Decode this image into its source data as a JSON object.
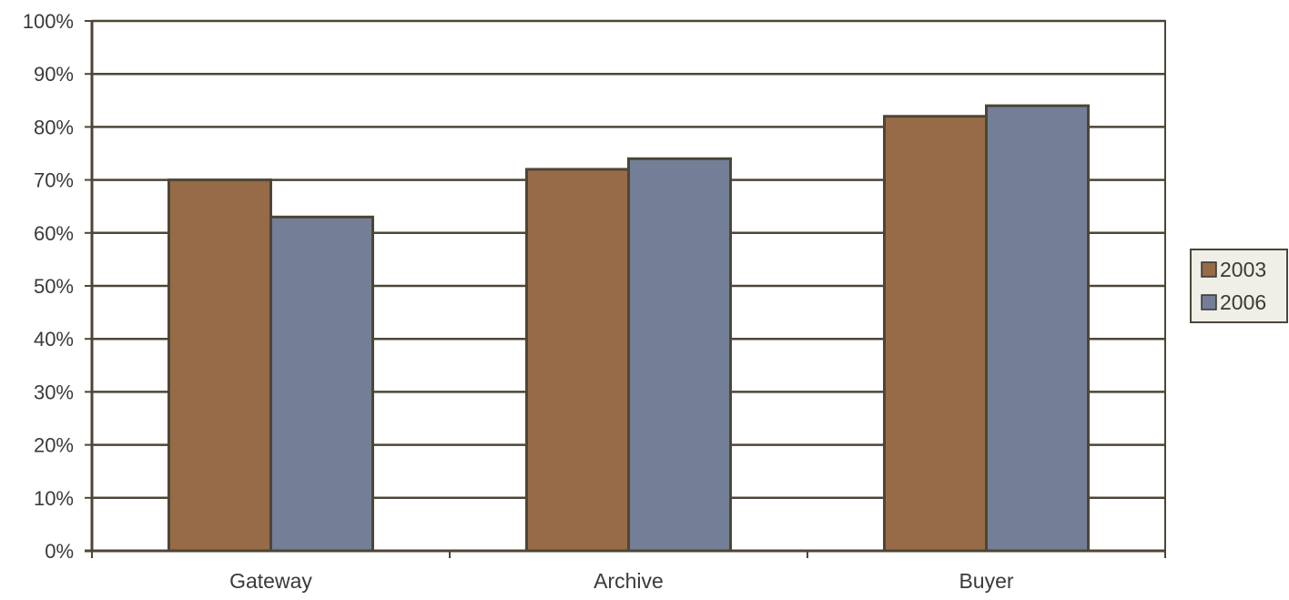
{
  "chart_data": {
    "type": "bar",
    "categories": [
      "Gateway",
      "Archive",
      "Buyer"
    ],
    "series": [
      {
        "name": "2003",
        "values": [
          70,
          72,
          82
        ],
        "color": "#976b47"
      },
      {
        "name": "2006",
        "values": [
          63,
          74,
          84
        ],
        "color": "#737f97"
      }
    ],
    "yticks": [
      "0%",
      "10%",
      "20%",
      "30%",
      "40%",
      "50%",
      "60%",
      "70%",
      "80%",
      "90%",
      "100%"
    ],
    "ylim": [
      0,
      100
    ],
    "grid": true,
    "legend": "right",
    "axis_color": "#4d4636",
    "bar_outline_color": "#4d4636",
    "legend_background": "#efefe8"
  }
}
